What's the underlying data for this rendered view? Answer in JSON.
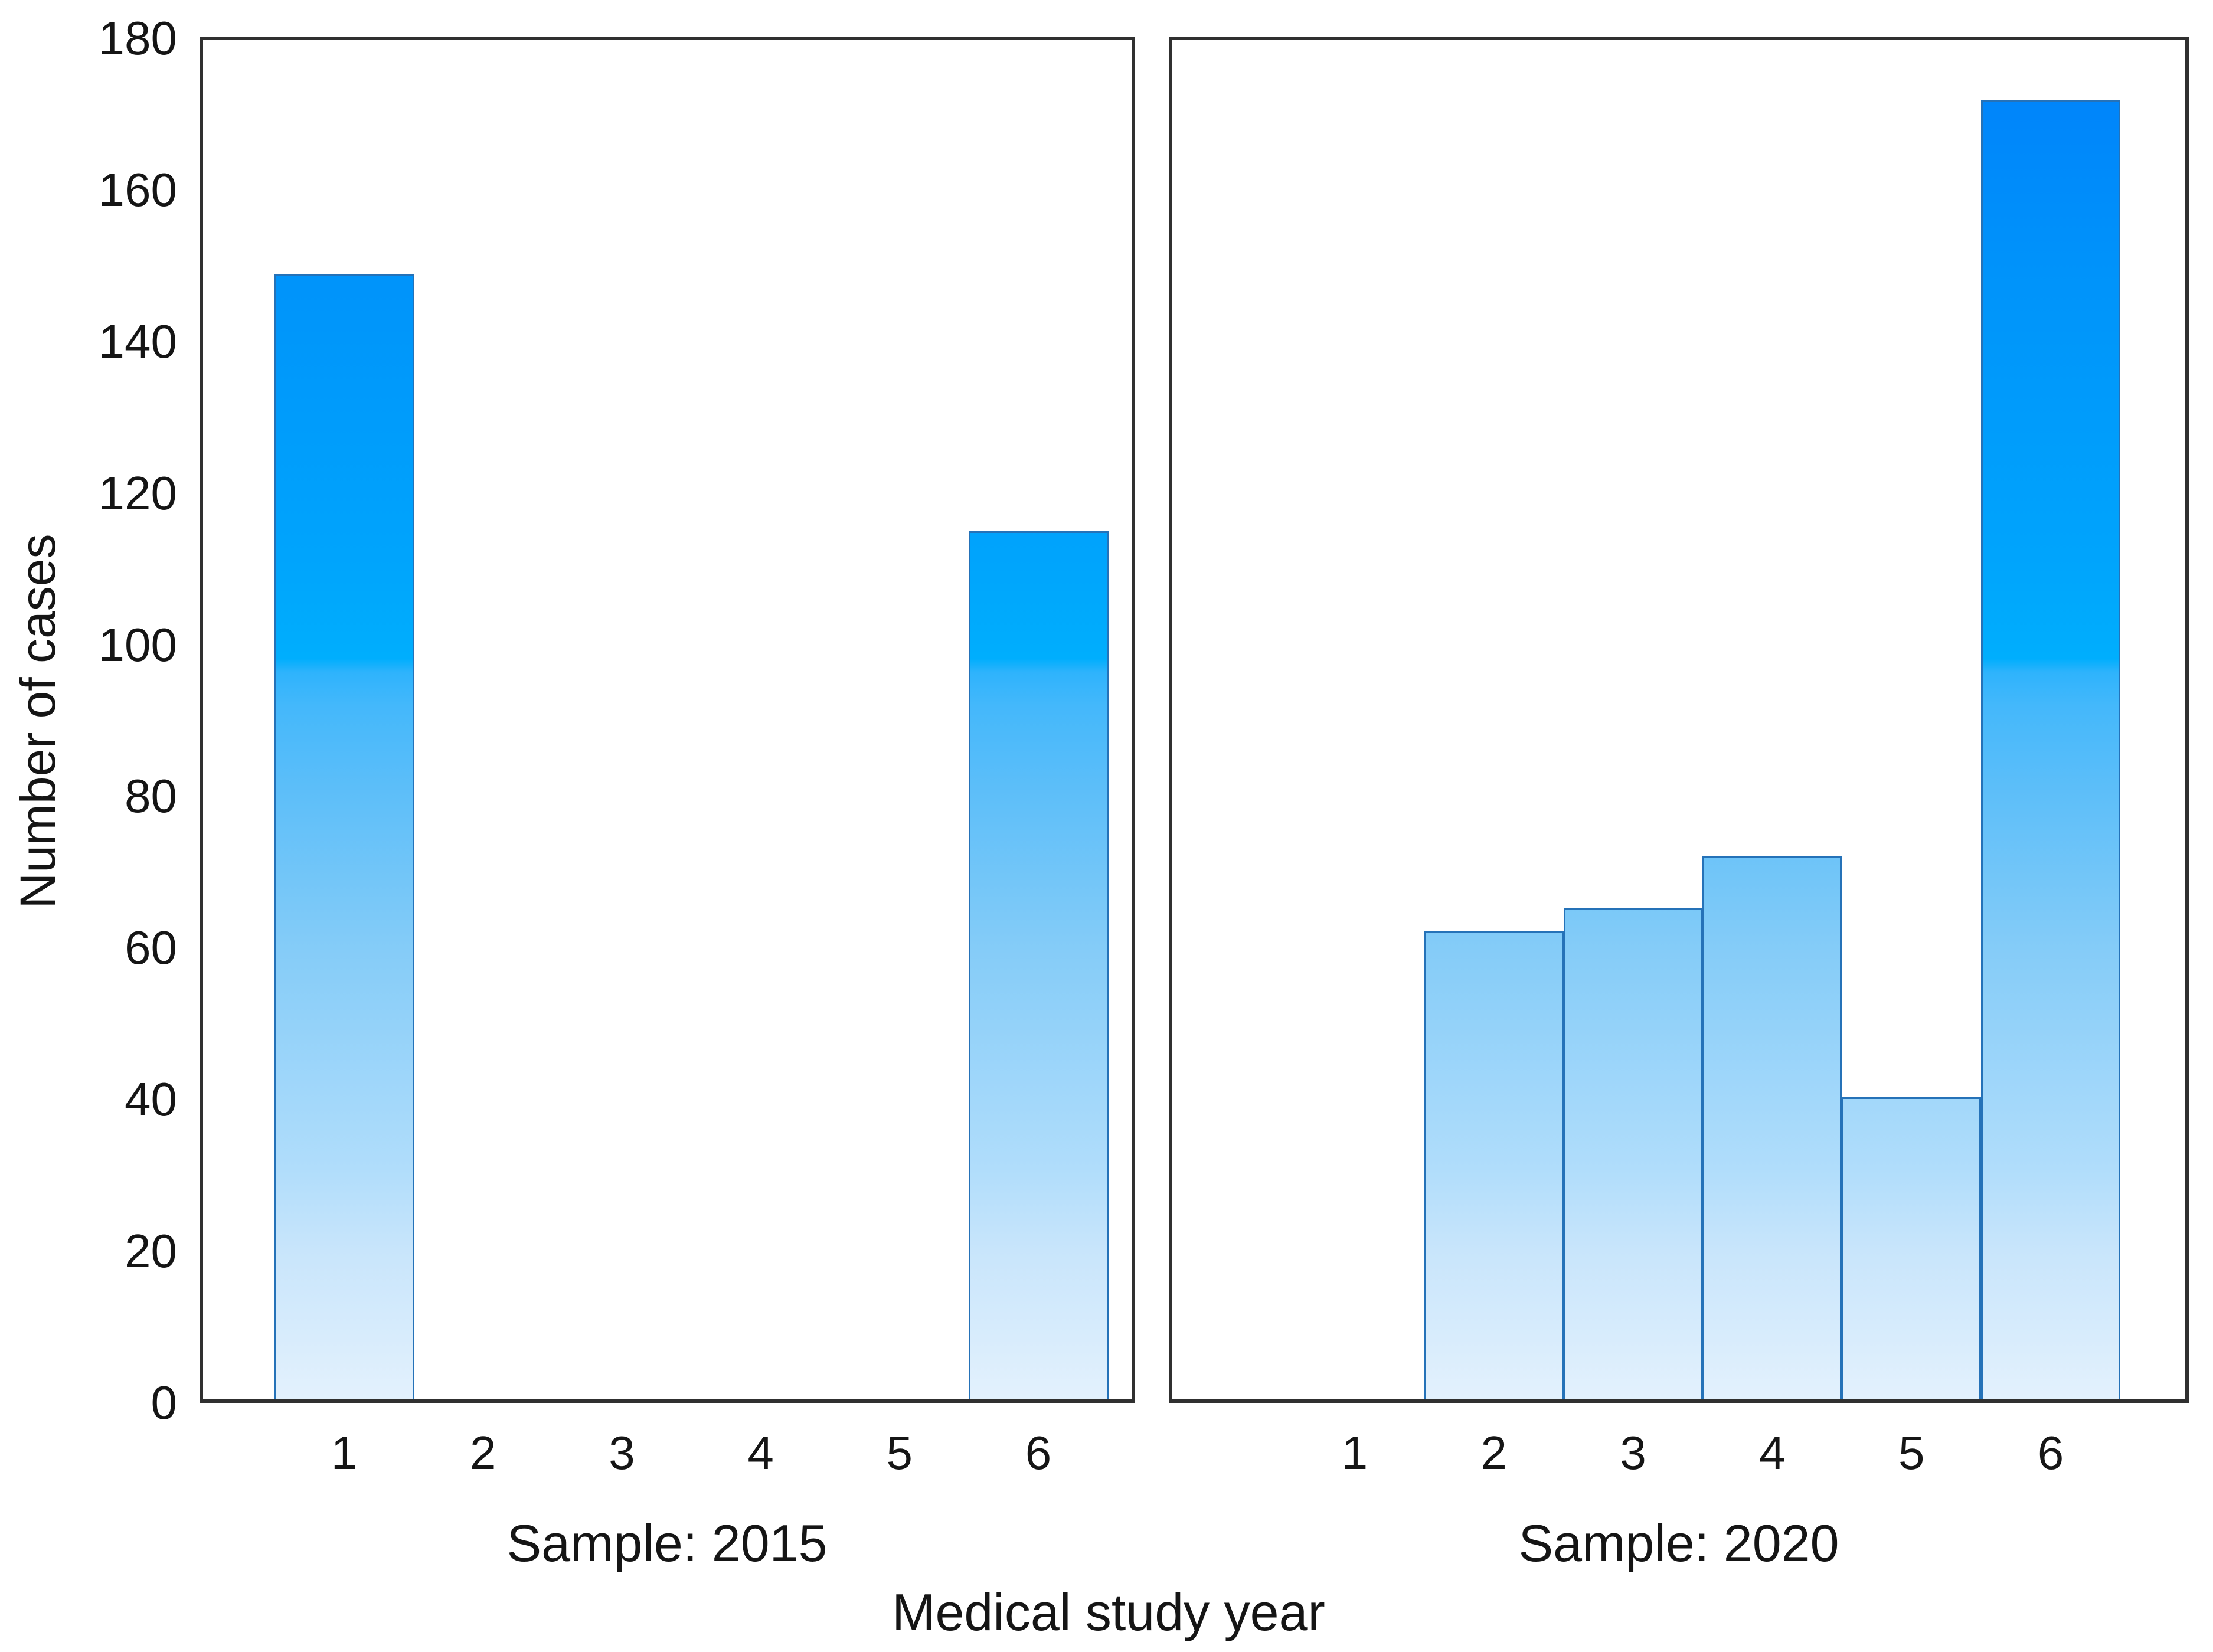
{
  "figure": {
    "background_color": "#ffffff",
    "text_color": "#151515"
  },
  "chart_data": {
    "type": "bar",
    "title": "",
    "xlabel": "Medical study year",
    "ylabel": "Number of cases",
    "ylim": [
      0,
      180
    ],
    "yticks": [
      0,
      20,
      40,
      60,
      80,
      100,
      120,
      140,
      160,
      180
    ],
    "grid": false,
    "legend_position": "none",
    "bar_style": "histogram-touching",
    "categories": [
      "1",
      "2",
      "3",
      "4",
      "5",
      "6"
    ],
    "panels": [
      {
        "label": "Sample: 2015",
        "values": [
          149,
          0,
          0,
          0,
          0,
          115
        ]
      },
      {
        "label": "Sample: 2020",
        "values": [
          0,
          62,
          65,
          72,
          40,
          172
        ]
      }
    ],
    "colors": {
      "bar_gradient_top": "#0080fa",
      "bar_gradient_upper_mid": "#00aefd",
      "bar_gradient_lower_mid": "#85ccf8",
      "bar_gradient_bottom": "#e3f1fd",
      "bar_border": "#2572b8",
      "panel_border": "#303030",
      "text": "#151515"
    }
  }
}
